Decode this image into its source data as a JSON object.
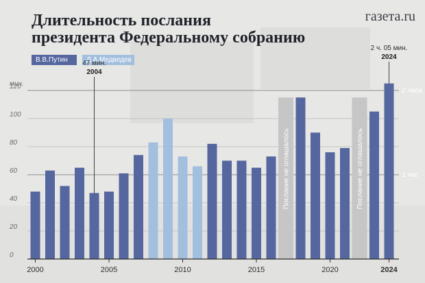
{
  "header": {
    "title_line1": "Длительность послания",
    "title_line2": "президента Федеральному собранию",
    "brand": "газета.ru"
  },
  "legend": {
    "putin": "В.В.Путин",
    "medvedev": "Д.А.Медведев"
  },
  "colors": {
    "putin": "#56669f",
    "medvedev": "#a3bfde",
    "no_message": "#c6c6c6",
    "background": "#e7e7e5"
  },
  "chart_data": {
    "type": "bar",
    "ylabel": "мин.",
    "ylim": [
      0,
      125
    ],
    "yticks": [
      0,
      20,
      40,
      60,
      80,
      100,
      120
    ],
    "xticks": [
      2000,
      2005,
      2010,
      2015,
      2020,
      2024
    ],
    "secondary_axis": [
      {
        "value": 120,
        "label": "2 часа"
      },
      {
        "value": 60,
        "label": "1 час"
      }
    ],
    "series": [
      {
        "name": "В.В.Путин",
        "points": [
          {
            "x": 2000,
            "y": 48
          },
          {
            "x": 2001,
            "y": 63
          },
          {
            "x": 2002,
            "y": 52
          },
          {
            "x": 2003,
            "y": 65
          },
          {
            "x": 2004,
            "y": 47
          },
          {
            "x": 2005,
            "y": 48
          },
          {
            "x": 2006,
            "y": 61
          },
          {
            "x": 2007,
            "y": 74
          },
          {
            "x": 2012,
            "y": 82
          },
          {
            "x": 2013,
            "y": 70
          },
          {
            "x": 2014,
            "y": 70
          },
          {
            "x": 2015,
            "y": 65
          },
          {
            "x": 2016,
            "y": 73
          },
          {
            "x": 2018,
            "y": 115
          },
          {
            "x": 2019,
            "y": 90
          },
          {
            "x": 2020,
            "y": 76
          },
          {
            "x": 2021,
            "y": 79
          },
          {
            "x": 2023,
            "y": 105
          },
          {
            "x": 2024,
            "y": 125
          }
        ]
      },
      {
        "name": "Д.А.Медведев",
        "points": [
          {
            "x": 2008,
            "y": 83
          },
          {
            "x": 2009,
            "y": 100
          },
          {
            "x": 2010,
            "y": 73
          },
          {
            "x": 2011,
            "y": 66
          }
        ]
      }
    ],
    "gaps": [
      {
        "x": 2017,
        "label": "Послание не оглашалось"
      },
      {
        "x": 2022,
        "label": "Послание не оглашалось"
      }
    ],
    "annotations": [
      {
        "x": 2004,
        "value_text": "47 мин.",
        "year_text": "2004"
      },
      {
        "x": 2024,
        "value_text": "2 ч. 05 мин.",
        "year_text": "2024"
      }
    ]
  }
}
